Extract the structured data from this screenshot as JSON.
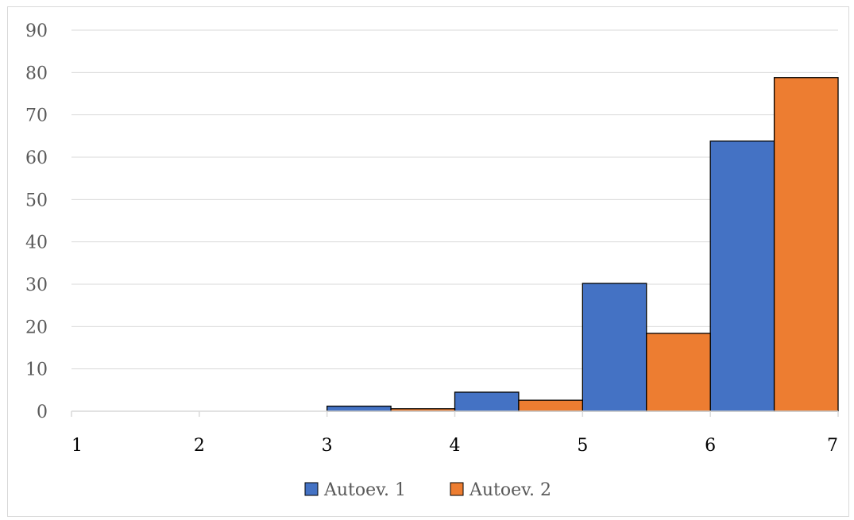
{
  "chart_data": {
    "type": "bar",
    "x_ticks": [
      "1",
      "2",
      "3",
      "4",
      "5",
      "6",
      "7"
    ],
    "bin_edges": [
      1,
      2,
      3,
      4,
      5,
      6,
      7
    ],
    "series": [
      {
        "name": "Autoev. 1",
        "color": "#4472c4",
        "values": [
          0,
          0,
          1.2,
          4.5,
          30.2,
          63.8
        ]
      },
      {
        "name": "Autoev. 2",
        "color": "#ed7d31",
        "values": [
          0,
          0,
          0.6,
          2.6,
          18.4,
          78.8
        ]
      }
    ],
    "y_ticks": [
      "0",
      "10",
      "20",
      "30",
      "40",
      "50",
      "60",
      "70",
      "80",
      "90"
    ],
    "ylim": [
      0,
      90
    ],
    "xlim": [
      1,
      7
    ],
    "grid": true,
    "legend_position": "bottom",
    "title": "",
    "xlabel": "",
    "ylabel": ""
  }
}
